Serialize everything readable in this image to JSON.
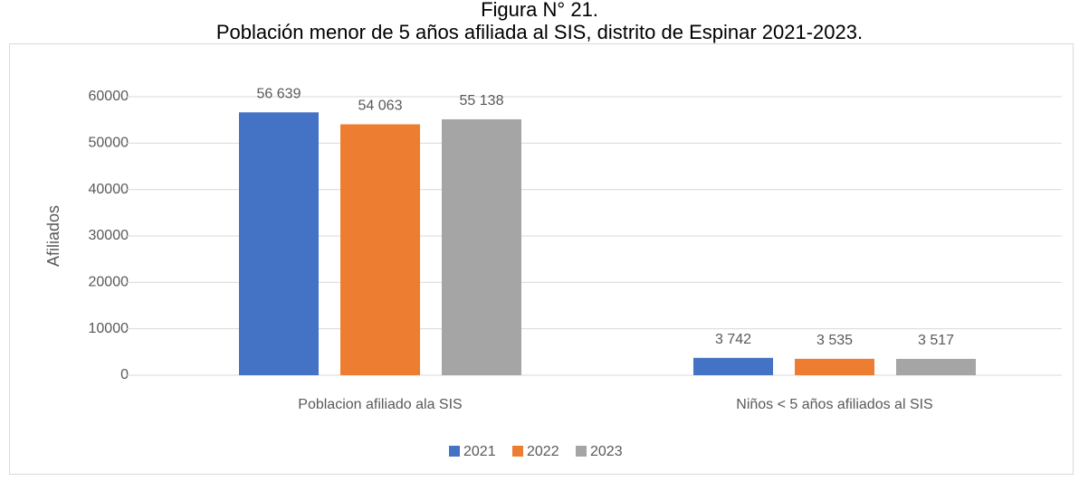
{
  "chart_data": {
    "type": "bar",
    "title": "Figura N° 21.",
    "subtitle": "Población menor de 5 años afiliada al SIS, distrito de Espinar 2021-2023.",
    "ylabel": "Afiliados",
    "categories": [
      "Poblacion afiliado ala SIS",
      "Niños < 5 años afiliados al SIS"
    ],
    "series": [
      {
        "name": "2021",
        "color": "#4472c4",
        "values": [
          56639,
          3742
        ],
        "value_labels": [
          "56 639",
          "3 742"
        ]
      },
      {
        "name": "2022",
        "color": "#ed7d31",
        "values": [
          54063,
          3535
        ],
        "value_labels": [
          "54 063",
          "3 535"
        ]
      },
      {
        "name": "2023",
        "color": "#a5a5a5",
        "values": [
          55138,
          3517
        ],
        "value_labels": [
          "55 138",
          "3 517"
        ]
      }
    ],
    "ylim": [
      0,
      60000
    ],
    "yticks": [
      0,
      10000,
      20000,
      30000,
      40000,
      50000,
      60000
    ],
    "grid": true,
    "legend": "bottom"
  }
}
